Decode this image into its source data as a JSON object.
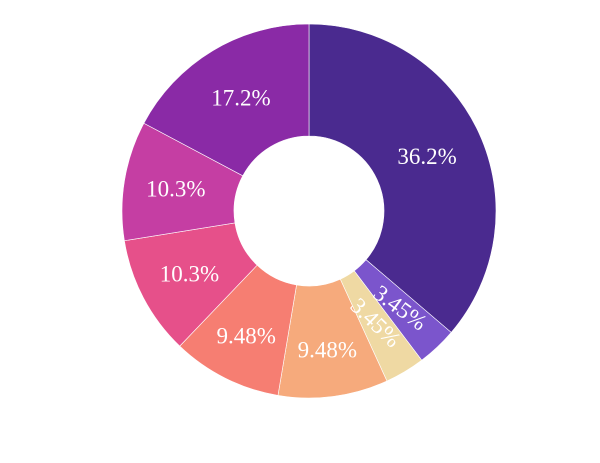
{
  "chart_data": {
    "type": "pie",
    "hole": true,
    "start": "top, clockwise",
    "title": "",
    "legend": "none",
    "slices": [
      {
        "label": "36.2%",
        "value": 36.2,
        "color": "#4a2a8f"
      },
      {
        "label": "3.45%",
        "value": 3.45,
        "color": "#7b55cc"
      },
      {
        "label": "3.45%",
        "value": 3.45,
        "color": "#efd9a3"
      },
      {
        "label": "9.48%",
        "value": 9.48,
        "color": "#f6aa7c"
      },
      {
        "label": "9.48%",
        "value": 9.48,
        "color": "#f67e72"
      },
      {
        "label": "10.3%",
        "value": 10.3,
        "color": "#e6508a"
      },
      {
        "label": "10.3%",
        "value": 10.3,
        "color": "#c53ea3"
      },
      {
        "label": "17.2%",
        "value": 17.2,
        "color": "#8a2aa6"
      }
    ]
  }
}
